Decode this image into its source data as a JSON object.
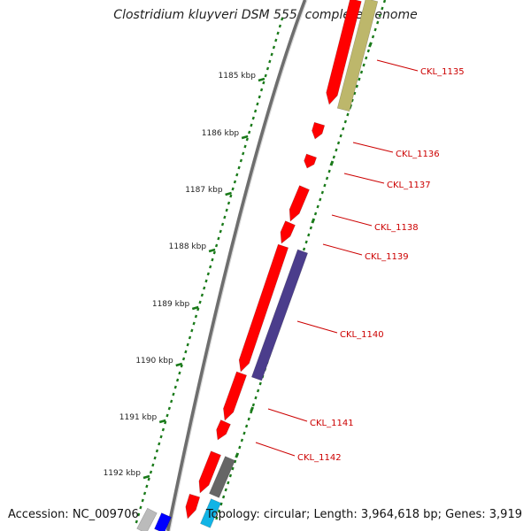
{
  "title": "Clostridium kluyveri DSM 555, complete genome",
  "footer": {
    "accession": "Accession: NC_009706",
    "summary": "Topology: circular; Length: 3,964,618 bp; Genes: 3,919"
  },
  "ruler": {
    "labels": [
      "1185 kbp",
      "1186 kbp",
      "1187 kbp",
      "1188 kbp",
      "1189 kbp",
      "1190 kbp",
      "1191 kbp",
      "1192 kbp"
    ]
  },
  "genes": [
    {
      "label": "CKL_1135"
    },
    {
      "label": "CKL_1136"
    },
    {
      "label": "CKL_1137"
    },
    {
      "label": "CKL_1138"
    },
    {
      "label": "CKL_1139"
    },
    {
      "label": "CKL_1140"
    },
    {
      "label": "CKL_1141"
    },
    {
      "label": "CKL_1142"
    }
  ],
  "colors": {
    "cds": "#ff0000",
    "backbone": "#777777",
    "tick": "#1a7a1a",
    "label": "#cc0000",
    "olive": "#bdb76b",
    "purple": "#4b3d8c",
    "gray": "#666666",
    "cyan": "#12b4e6",
    "blue": "#0000ff",
    "lightgray": "#bbbbbb"
  }
}
